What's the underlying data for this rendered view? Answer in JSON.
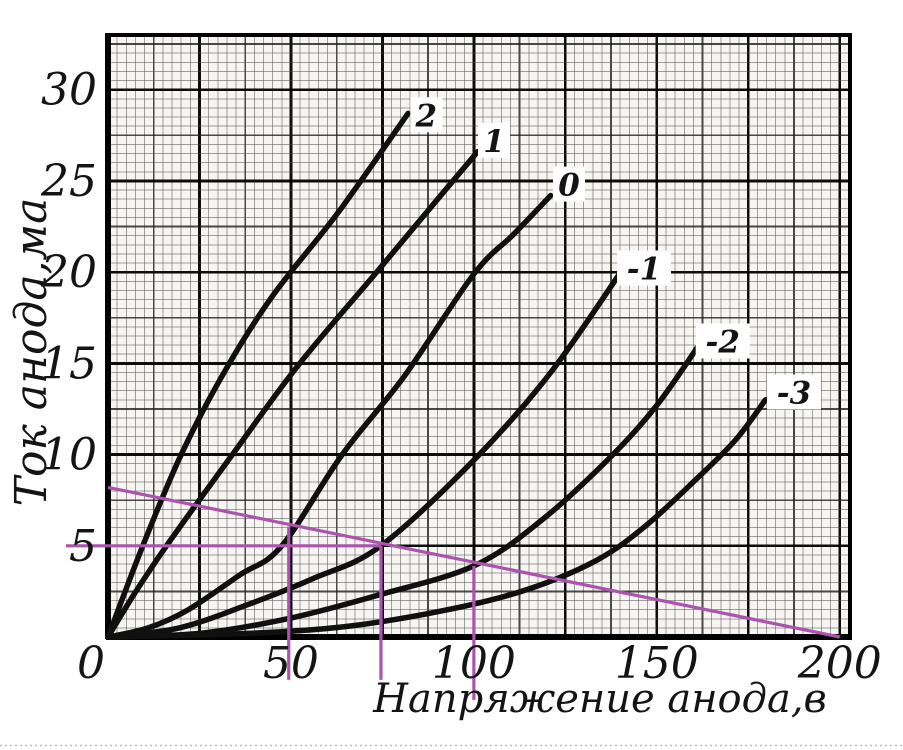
{
  "figure": {
    "kind": "scanned-textbook-figure",
    "x_axis_title": "Напряжение анода,в",
    "y_axis_title": "Ток анода,ма"
  },
  "chart_data": {
    "type": "line",
    "title": "",
    "xlabel": "Напряжение анода,в",
    "ylabel": "Ток анода,ма",
    "xlim": [
      0,
      202.8
    ],
    "ylim": [
      0,
      33
    ],
    "x_ticks": [
      0,
      50,
      100,
      150,
      200
    ],
    "y_ticks": [
      0,
      5,
      10,
      15,
      20,
      25,
      30
    ],
    "grid": {
      "fine_step_v": 2.5,
      "fine_step_i": 0.5,
      "medium_every": 5,
      "strong_every": 10,
      "on": true
    },
    "curve_color": "#101010",
    "accent_color": "#ad53ad",
    "series": [
      {
        "name": "2",
        "grid_voltage_v": 2,
        "label_at": [
          87,
          28.6
        ],
        "points": [
          [
            0,
            0
          ],
          [
            9.5,
            5
          ],
          [
            20,
            10
          ],
          [
            32,
            14.6
          ],
          [
            45,
            18.7
          ],
          [
            63,
            23.3
          ],
          [
            82,
            28.7
          ]
        ]
      },
      {
        "name": "1",
        "grid_voltage_v": 1,
        "label_at": [
          105.5,
          27.2
        ],
        "points": [
          [
            0,
            0
          ],
          [
            7,
            2.3
          ],
          [
            16,
            5
          ],
          [
            34,
            10
          ],
          [
            52,
            14.9
          ],
          [
            73,
            19.9
          ],
          [
            88,
            23.5
          ],
          [
            101,
            26.6
          ]
        ]
      },
      {
        "name": "0",
        "grid_voltage_v": 0,
        "label_at": [
          126,
          24.8
        ],
        "points": [
          [
            0,
            0
          ],
          [
            11,
            0.5
          ],
          [
            22,
            1.5
          ],
          [
            36,
            3.4
          ],
          [
            47.5,
            5
          ],
          [
            64,
            10
          ],
          [
            81,
            14.3
          ],
          [
            100,
            19.9
          ],
          [
            111,
            22.1
          ],
          [
            121,
            24.2
          ]
        ]
      },
      {
        "name": "-1",
        "grid_voltage_v": -1,
        "label_at": [
          146.5,
          20.2
        ],
        "points": [
          [
            0,
            0
          ],
          [
            19.5,
            0.5
          ],
          [
            38.5,
            1.8
          ],
          [
            56,
            3.2
          ],
          [
            74.6,
            5
          ],
          [
            101,
            9.9
          ],
          [
            121,
            14.5
          ],
          [
            139.8,
            19.9
          ]
        ]
      },
      {
        "name": "-2",
        "grid_voltage_v": -2,
        "label_at": [
          168,
          16.2
        ],
        "points": [
          [
            0,
            0
          ],
          [
            25,
            0.2
          ],
          [
            49,
            1
          ],
          [
            74,
            2.3
          ],
          [
            100,
            3.9
          ],
          [
            118.5,
            6.4
          ],
          [
            137.5,
            9.9
          ],
          [
            150,
            12.7
          ],
          [
            161.5,
            16
          ]
        ]
      },
      {
        "name": "-3",
        "grid_voltage_v": -3,
        "label_at": [
          187.5,
          13.4
        ],
        "points": [
          [
            0,
            0
          ],
          [
            38.5,
            0.2
          ],
          [
            66,
            0.6
          ],
          [
            93,
            1.5
          ],
          [
            114.5,
            2.6
          ],
          [
            133.5,
            4.2
          ],
          [
            147,
            6.1
          ],
          [
            160.5,
            8.6
          ],
          [
            171.5,
            10.8
          ],
          [
            179.7,
            13
          ]
        ]
      }
    ],
    "load_line": {
      "points": [
        [
          0,
          8.2
        ],
        [
          200,
          0
        ]
      ]
    },
    "construction_lines": {
      "horizontal": {
        "i": 5,
        "v_from": -11.5,
        "v_to": 74.6
      },
      "verticals": [
        {
          "v": 49.4,
          "i_from": 6.05,
          "i_to": -2.35
        },
        {
          "v": 74.6,
          "i_from": 5.0,
          "i_to": -2.35
        },
        {
          "v": 100.0,
          "i_from": 3.9,
          "i_to": -3.45
        }
      ]
    }
  }
}
